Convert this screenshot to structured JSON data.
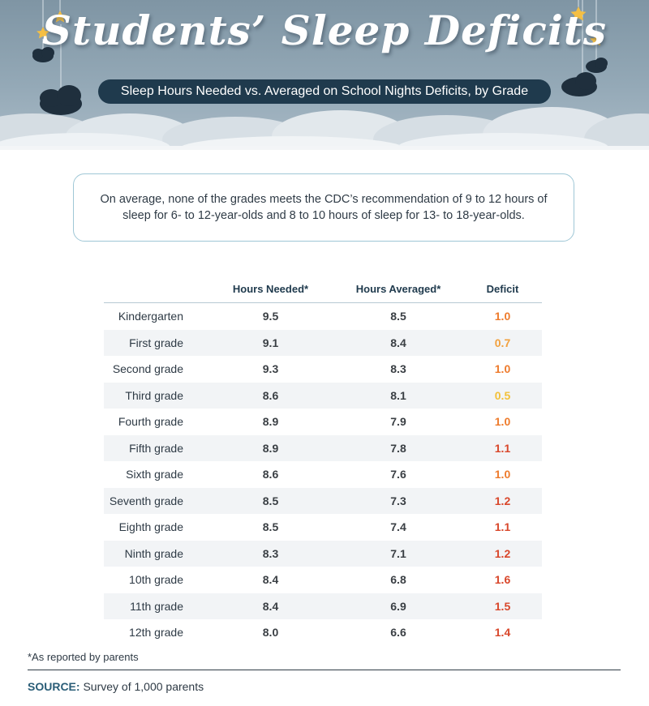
{
  "header": {
    "title": "Students’ Sleep Deficits",
    "subtitle": "Sleep Hours Needed vs. Averaged on School Nights Deficits, by Grade"
  },
  "note": "On average, none of the grades meets the CDC’s recommendation of 9 to 12 hours of sleep for 6- to 12-year-olds and 8 to 10 hours of sleep for 13- to 18-year-olds.",
  "colors": {
    "header_sky": "#8fa4b3",
    "subtitle_pill": "#1f3a4d",
    "deficit_yellow": "#f3c13a",
    "deficit_light_orange": "#f2a03d",
    "deficit_orange": "#ee7b2c",
    "deficit_red": "#d9472b"
  },
  "chart_data": {
    "type": "table",
    "columns": [
      "",
      "Hours Needed*",
      "Hours Averaged*",
      "Deficit"
    ],
    "rows": [
      {
        "grade": "Kindergarten",
        "needed": "9.5",
        "averaged": "8.5",
        "deficit": "1.0"
      },
      {
        "grade": "First grade",
        "needed": "9.1",
        "averaged": "8.4",
        "deficit": "0.7"
      },
      {
        "grade": "Second grade",
        "needed": "9.3",
        "averaged": "8.3",
        "deficit": "1.0"
      },
      {
        "grade": "Third grade",
        "needed": "8.6",
        "averaged": "8.1",
        "deficit": "0.5"
      },
      {
        "grade": "Fourth grade",
        "needed": "8.9",
        "averaged": "7.9",
        "deficit": "1.0"
      },
      {
        "grade": "Fifth grade",
        "needed": "8.9",
        "averaged": "7.8",
        "deficit": "1.1"
      },
      {
        "grade": "Sixth grade",
        "needed": "8.6",
        "averaged": "7.6",
        "deficit": "1.0"
      },
      {
        "grade": "Seventh grade",
        "needed": "8.5",
        "averaged": "7.3",
        "deficit": "1.2"
      },
      {
        "grade": "Eighth grade",
        "needed": "8.5",
        "averaged": "7.4",
        "deficit": "1.1"
      },
      {
        "grade": "Ninth grade",
        "needed": "8.3",
        "averaged": "7.1",
        "deficit": "1.2"
      },
      {
        "grade": "10th grade",
        "needed": "8.4",
        "averaged": "6.8",
        "deficit": "1.6"
      },
      {
        "grade": "11th grade",
        "needed": "8.4",
        "averaged": "6.9",
        "deficit": "1.5"
      },
      {
        "grade": "12th grade",
        "needed": "8.0",
        "averaged": "6.6",
        "deficit": "1.4"
      }
    ]
  },
  "footnote": "*As reported by parents",
  "source": {
    "label": "SOURCE:",
    "text": "Survey of 1,000 parents"
  }
}
